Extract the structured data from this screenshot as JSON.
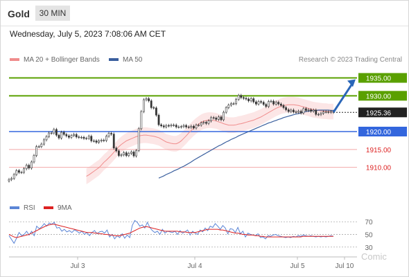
{
  "header": {
    "title": "Gold",
    "timeframe": "30 MIN"
  },
  "datetime": "Wednesday, July 5, 2023 7:08:06 AM CET",
  "legend": {
    "bollinger_label": "MA 20 + Bollinger Bands",
    "ma50_label": "MA 50",
    "rsi_label": "RSI",
    "rsi_ma_label": "9MA"
  },
  "credit": "Research © 2023 Trading Central",
  "watermark": "Comic",
  "colors": {
    "bollinger": "#f08c8c",
    "band_fill": "#fbe0e0",
    "ma50": "#3a5f9e",
    "resistance": "#5aa000",
    "current": "#222222",
    "pivot": "#3366dd",
    "support": "#dd2222",
    "rsi": "#5b85d6",
    "rsi_ma": "#dd2222",
    "forecast_arrow": "#2a66b8",
    "up_candle": "#ffffff",
    "down_candle": "#333333"
  },
  "chart_data": [
    {
      "type": "candlestick",
      "title": "Gold",
      "x_ticks": [
        "Jul 3",
        "Jul 4",
        "Jul 5",
        "Jul 10"
      ],
      "y_range": [
        1902,
        1938
      ],
      "levels": [
        {
          "value": 1935.0,
          "label": "1935.00",
          "kind": "resistance"
        },
        {
          "value": 1930.0,
          "label": "1930.00",
          "kind": "resistance"
        },
        {
          "value": 1925.36,
          "label": "1925.36",
          "kind": "current"
        },
        {
          "value": 1920.0,
          "label": "1920.00",
          "kind": "pivot"
        },
        {
          "value": 1915.0,
          "label": "1915.00",
          "kind": "support"
        },
        {
          "value": 1910.0,
          "label": "1910.00",
          "kind": "support"
        }
      ],
      "close": [
        1906.6,
        1906.9,
        1908.0,
        1909.1,
        1908.6,
        1908.6,
        1909.6,
        1910.6,
        1909.8,
        1911.5,
        1913.3,
        1915.8,
        1915.8,
        1916.5,
        1917.7,
        1918.6,
        1919.6,
        1919.6,
        1920.6,
        1919.0,
        1918.2,
        1919.8,
        1919.2,
        1918.8,
        1918.4,
        1918.9,
        1919.2,
        1918.5,
        1918.4,
        1918.4,
        1918.1,
        1918.1,
        1918.7,
        1917.4,
        1917.4,
        1917.0,
        1917.4,
        1917.6,
        1917.5,
        1918.7,
        1919.5,
        1919.3,
        1915.4,
        1914.6,
        1913.3,
        1913.5,
        1914.1,
        1913.3,
        1913.9,
        1914.3,
        1913.2,
        1914.7,
        1920.8,
        1925.6,
        1928.9,
        1929.2,
        1928.6,
        1926.7,
        1926.6,
        1924.6,
        1921.9,
        1921.6,
        1921.3,
        1921.7,
        1921.6,
        1921.8,
        1921.8,
        1921.3,
        1921.3,
        1921.4,
        1921.7,
        1921.3,
        1921.2,
        1921.5,
        1921.0,
        1921.8,
        1921.8,
        1922.4,
        1922.6,
        1922.3,
        1923.0,
        1923.9,
        1923.8,
        1923.4,
        1924.1,
        1923.3,
        1925.4,
        1926.7,
        1927.4,
        1927.8,
        1927.8,
        1929.0,
        1930.1,
        1929.5,
        1929.3,
        1929.1,
        1928.6,
        1929.2,
        1928.3,
        1927.7,
        1928.4,
        1928.2,
        1927.6,
        1927.0,
        1928.4,
        1928.5,
        1927.7,
        1928.2,
        1927.7,
        1927.3,
        1926.7,
        1926.1,
        1925.6,
        1926.0,
        1925.5,
        1925.4,
        1925.7,
        1925.2,
        1926.4,
        1925.9,
        1926.1,
        1925.7,
        1926.0,
        1924.8,
        1924.8,
        1925.1,
        1925.5,
        1925.5,
        1925.4,
        1925.6,
        1925.4
      ],
      "ma20": [
        1907.5,
        1907.9,
        1908.4,
        1908.9,
        1909.4,
        1909.9,
        1910.6,
        1911.4,
        1912.0,
        1912.7,
        1913.4,
        1914.2,
        1915.0,
        1915.8,
        1916.4,
        1916.9,
        1917.4,
        1917.7,
        1918.0,
        1918.3,
        1918.6,
        1918.8,
        1918.9,
        1919.0,
        1919.0,
        1918.9,
        1918.8,
        1918.7,
        1918.5,
        1918.3,
        1917.9,
        1917.5,
        1917.1,
        1916.9,
        1916.7,
        1916.6,
        1916.6,
        1916.9,
        1917.4,
        1918.1,
        1918.8,
        1919.6,
        1920.3,
        1921.0,
        1921.6,
        1922.1,
        1922.6,
        1922.9,
        1923.1,
        1923.2,
        1923.2,
        1923.1,
        1923.0,
        1922.7,
        1922.5,
        1922.2,
        1922.0,
        1921.8,
        1921.8,
        1921.8,
        1921.9,
        1922.1,
        1922.2,
        1922.4,
        1922.6,
        1922.8,
        1923.0,
        1923.2,
        1923.5,
        1923.8,
        1924.1,
        1924.5,
        1924.9,
        1925.3,
        1925.7,
        1926.1,
        1926.5,
        1926.8,
        1927.1,
        1927.3,
        1927.4,
        1927.5,
        1927.5,
        1927.5,
        1927.4,
        1927.3,
        1927.1,
        1926.9,
        1926.7,
        1926.5,
        1926.3,
        1926.1,
        1926.0,
        1925.9,
        1925.8,
        1925.7,
        1925.7,
        1925.6,
        1925.6,
        1925.6
      ],
      "ma50": [
        1907.0,
        1907.3,
        1907.6,
        1908.0,
        1908.3,
        1908.6,
        1909.0,
        1909.3,
        1909.6,
        1910.0,
        1910.3,
        1910.7,
        1911.1,
        1911.5,
        1912.0,
        1912.4,
        1912.8,
        1913.2,
        1913.6,
        1914.0,
        1914.4,
        1914.8,
        1915.2,
        1915.6,
        1916.0,
        1916.3,
        1916.7,
        1917.1,
        1917.4,
        1917.8,
        1918.1,
        1918.4,
        1918.8,
        1919.1,
        1919.4,
        1919.7,
        1920.0,
        1920.3,
        1920.6,
        1920.9,
        1921.2,
        1921.5,
        1921.8,
        1922.1,
        1922.4,
        1922.6,
        1922.9,
        1923.1,
        1923.4,
        1923.6,
        1923.9,
        1924.1,
        1924.3,
        1924.5,
        1924.7,
        1924.9,
        1925.0,
        1925.2,
        1925.4,
        1925.6,
        1925.7,
        1925.8,
        1925.9,
        1925.9,
        1926.0,
        1926.0,
        1926.0,
        1926.0,
        1926.0,
        1925.9,
        1925.9
      ],
      "rsi": [
        48,
        42,
        36,
        44,
        53,
        48,
        50,
        55,
        49,
        55,
        48,
        63,
        59,
        62,
        67,
        63,
        68,
        66,
        69,
        60,
        61,
        55,
        58,
        54,
        56,
        53,
        57,
        55,
        52,
        55,
        50,
        53,
        48,
        53,
        56,
        51,
        54,
        55,
        52,
        57,
        46,
        50,
        43,
        48,
        45,
        51,
        44,
        49,
        45,
        64,
        72,
        69,
        63,
        65,
        60,
        69,
        61,
        56,
        53,
        55,
        50,
        58,
        52,
        55,
        54,
        53,
        55,
        50,
        56,
        52,
        54,
        57,
        49,
        55,
        52,
        50,
        57,
        54,
        60,
        56,
        63,
        61,
        67,
        63,
        58,
        64,
        60,
        51,
        59,
        58,
        53,
        61,
        51,
        55,
        46,
        52,
        50,
        49,
        48,
        51,
        45,
        46,
        43,
        48,
        47,
        49,
        50,
        48,
        47,
        46,
        45,
        46,
        45,
        47,
        46,
        48,
        47,
        49,
        48,
        47,
        48,
        47,
        46,
        47,
        46,
        47,
        46,
        47,
        48,
        47
      ],
      "rsi_ma": [
        50,
        48,
        46,
        45,
        46,
        47,
        48,
        49,
        50,
        52,
        54,
        56,
        58,
        60,
        62,
        64,
        65,
        66,
        66,
        65,
        64,
        63,
        62,
        61,
        60,
        59,
        58,
        57,
        56,
        55,
        54,
        53,
        53,
        53,
        52,
        52,
        51,
        51,
        50,
        50,
        49,
        49,
        48,
        48,
        48,
        49,
        50,
        51,
        52,
        54,
        56,
        58,
        60,
        61,
        62,
        62,
        61,
        60,
        59,
        58,
        57,
        56,
        55,
        55,
        55,
        55,
        55,
        55,
        54,
        54,
        54,
        53,
        53,
        53,
        53,
        54,
        55,
        56,
        57,
        58,
        58,
        58,
        58,
        58,
        57,
        57,
        56,
        55,
        54,
        53,
        52,
        52,
        51,
        50,
        50,
        49,
        49,
        49,
        48,
        48,
        47,
        47,
        46,
        46,
        46,
        46,
        46,
        46,
        46,
        46,
        46,
        46,
        46,
        46,
        46,
        46,
        46,
        47,
        47,
        47,
        47,
        47,
        47,
        47,
        47,
        47,
        47,
        47,
        47,
        47
      ],
      "rsi_ticks": [
        "70",
        "50",
        "30"
      ],
      "forecast": "up to 1935.00"
    }
  ]
}
